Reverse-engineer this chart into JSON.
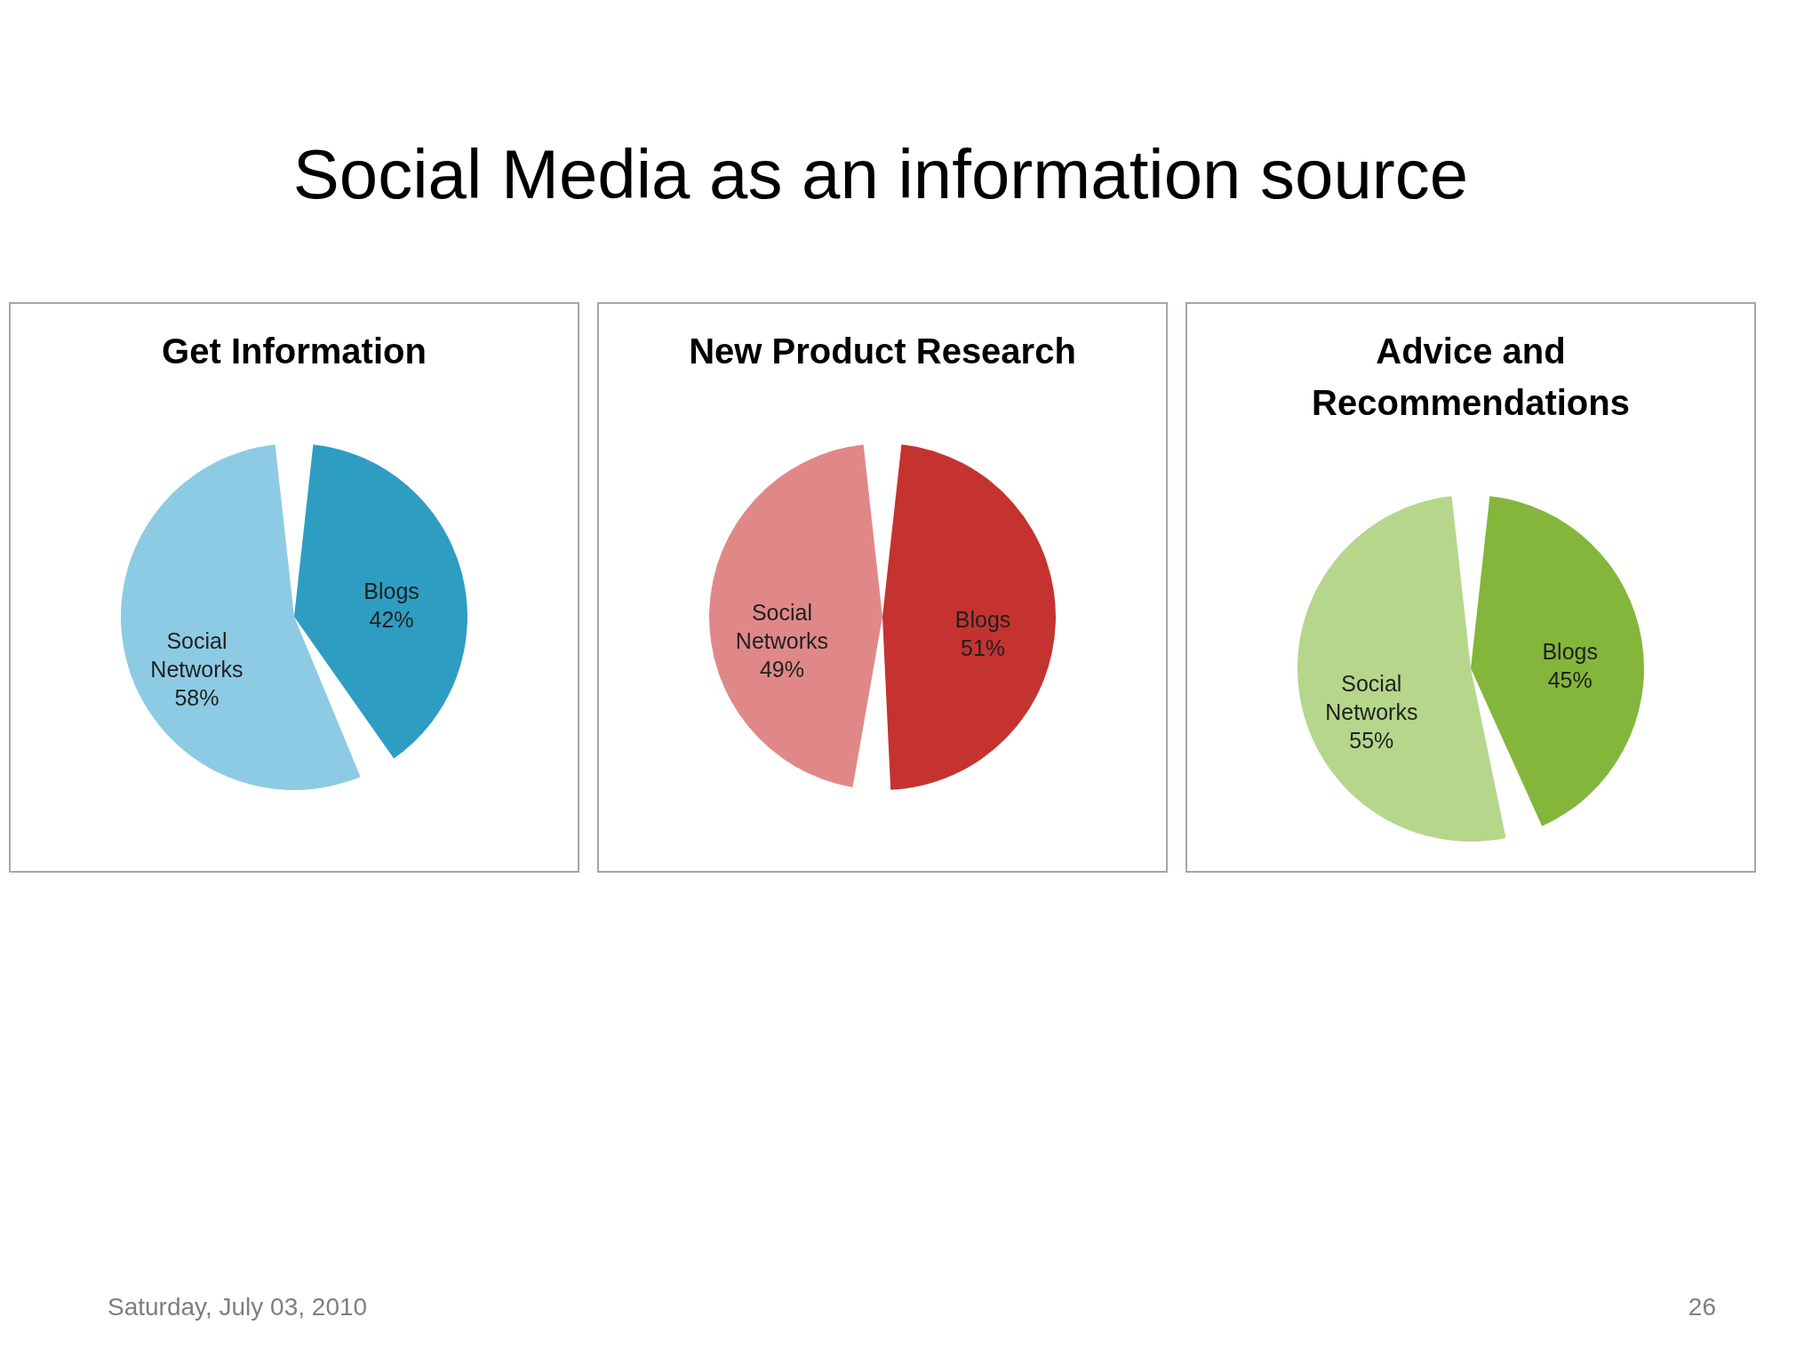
{
  "chart_data": [
    {
      "type": "other",
      "title": "Social Media as an information source"
    },
    {
      "type": "pie",
      "title": "Get Information",
      "categories": [
        "Blogs",
        "Social Networks"
      ],
      "values": [
        42,
        58
      ],
      "colors": [
        "#2e9dc2",
        "#8ccbe3"
      ],
      "value_labels": [
        "42%",
        "58%"
      ]
    },
    {
      "type": "pie",
      "title": "New Product Research",
      "categories": [
        "Blogs",
        "Social Networks"
      ],
      "values": [
        51,
        49
      ],
      "colors": [
        "#c43330",
        "#e08888"
      ],
      "value_labels": [
        "51%",
        "49%"
      ]
    },
    {
      "type": "pie",
      "title": "Advice and Recommendations",
      "categories": [
        "Blogs",
        "Social Networks"
      ],
      "values": [
        45,
        55
      ],
      "colors": [
        "#84b63b",
        "#b6d68c"
      ],
      "value_labels": [
        "45%",
        "55%"
      ]
    },
    {
      "type": "other",
      "annotations": [
        "Saturday, July 03, 2010",
        "26"
      ]
    }
  ]
}
